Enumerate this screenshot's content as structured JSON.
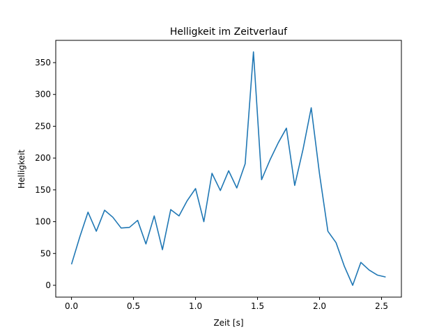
{
  "chart_data": {
    "type": "line",
    "title": "Helligkeit im Zeitverlauf",
    "xlabel": "Zeit [s]",
    "ylabel": "Helligkeit",
    "xlim": [
      -0.127,
      2.66
    ],
    "ylim": [
      -18.6,
      385
    ],
    "xticks": [
      0.0,
      0.5,
      1.0,
      1.5,
      2.0,
      2.5
    ],
    "xtick_labels": [
      "0.0",
      "0.5",
      "1.0",
      "1.5",
      "2.0",
      "2.5"
    ],
    "yticks": [
      0,
      50,
      100,
      150,
      200,
      250,
      300,
      350
    ],
    "ytick_labels": [
      "0",
      "50",
      "100",
      "150",
      "200",
      "250",
      "300",
      "350"
    ],
    "grid": false,
    "series": [
      {
        "name": "Helligkeit",
        "color": "#1f77b4",
        "x": [
          0,
          0.067,
          0.133,
          0.2,
          0.267,
          0.333,
          0.4,
          0.467,
          0.533,
          0.6,
          0.667,
          0.733,
          0.8,
          0.867,
          0.933,
          1.0,
          1.067,
          1.133,
          1.2,
          1.267,
          1.333,
          1.4,
          1.467,
          1.533,
          1.6,
          1.667,
          1.733,
          1.8,
          1.867,
          1.933,
          2.0,
          2.067,
          2.133,
          2.2,
          2.267,
          2.333,
          2.4,
          2.467,
          2.533
        ],
        "y": [
          33,
          76,
          115,
          85,
          118,
          107,
          90,
          91,
          102,
          65,
          109,
          56,
          119,
          109,
          133,
          152,
          100,
          176,
          149,
          180,
          153,
          191,
          367,
          166,
          197,
          224,
          247,
          157,
          214,
          279,
          175,
          85,
          67,
          30,
          0,
          36,
          24,
          16,
          13
        ]
      }
    ]
  }
}
